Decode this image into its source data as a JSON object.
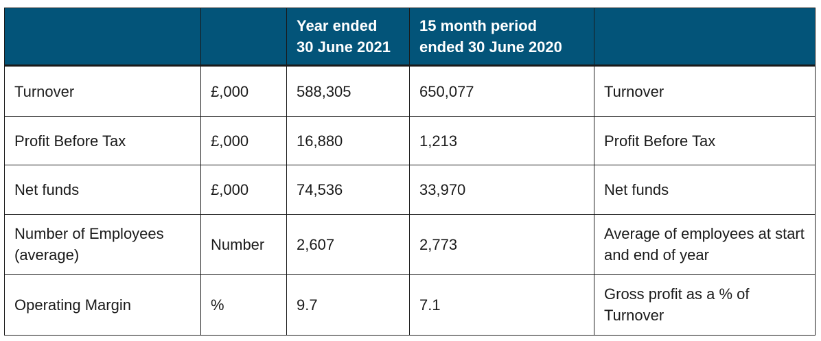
{
  "header": {
    "col1": "",
    "col2": "",
    "col3_line1": "Year ended",
    "col3_line2": "30 June 2021",
    "col4_line1": "15 month period",
    "col4_line2": "ended 30 June 2020",
    "col5": ""
  },
  "rows": [
    {
      "metric": "Turnover",
      "unit": "£,000",
      "y2021": "588,305",
      "y2020": "650,077",
      "definition": "Turnover"
    },
    {
      "metric": "Profit Before Tax",
      "unit": "£,000",
      "y2021": "16,880",
      "y2020": "1,213",
      "definition": "Profit Before Tax"
    },
    {
      "metric": "Net funds",
      "unit": "£,000",
      "y2021": "74,536",
      "y2020": "33,970",
      "definition": "Net funds"
    },
    {
      "metric": "Number of Employees (average)",
      "unit": "Number",
      "y2021": "2,607",
      "y2020": "2,773",
      "definition": "Average of employees at start and end of year"
    },
    {
      "metric": "Operating Margin",
      "unit": "%",
      "y2021": "9.7",
      "y2020": "7.1",
      "definition": "Gross profit as a % of Turnover"
    }
  ],
  "colors": {
    "header_bg": "#035479",
    "header_text": "#ffffff",
    "border": "#1a1a1a"
  }
}
